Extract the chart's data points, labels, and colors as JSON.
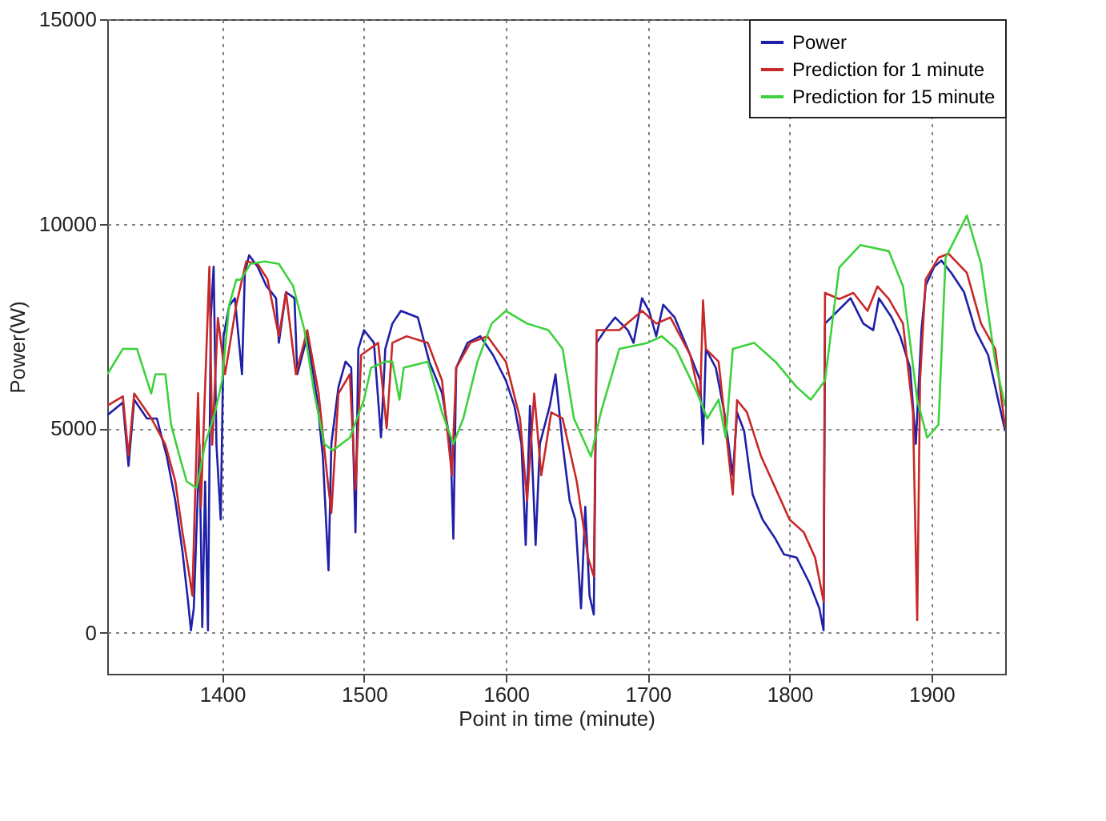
{
  "chart_data": {
    "type": "line",
    "xlabel": "Point in time (minute)",
    "ylabel": "Power(W)",
    "xlim": [
      1319,
      1952
    ],
    "ylim": [
      -1000,
      15000
    ],
    "xticks": [
      1400,
      1500,
      1600,
      1700,
      1800,
      1900
    ],
    "yticks": [
      0,
      5000,
      10000,
      15000
    ],
    "grid": true,
    "legend": "top right",
    "line_style": "solid",
    "marker": "none",
    "series": [
      {
        "name": "Power",
        "color": "#1f1fa8",
        "x": [
          1319,
          1330,
          1334,
          1338,
          1347,
          1354,
          1361,
          1367,
          1372,
          1376,
          1378,
          1380,
          1384,
          1386,
          1388,
          1390,
          1392,
          1394,
          1396,
          1399,
          1401,
          1405,
          1409,
          1414,
          1416,
          1419,
          1425,
          1431,
          1438,
          1440,
          1445,
          1451,
          1453,
          1460,
          1467,
          1471,
          1475,
          1477,
          1482,
          1487,
          1491,
          1494,
          1496,
          1500,
          1507,
          1512,
          1515,
          1520,
          1526,
          1538,
          1546,
          1555,
          1561,
          1563,
          1565,
          1573,
          1582,
          1591,
          1600,
          1606,
          1611,
          1614,
          1617,
          1621,
          1624,
          1631,
          1635,
          1640,
          1645,
          1649,
          1653,
          1656,
          1659,
          1662,
          1664,
          1670,
          1677,
          1686,
          1690,
          1696,
          1701,
          1706,
          1711,
          1719,
          1730,
          1737,
          1739,
          1741,
          1748,
          1754,
          1760,
          1763,
          1768,
          1774,
          1781,
          1790,
          1796,
          1805,
          1814,
          1821,
          1824,
          1825,
          1834,
          1843,
          1852,
          1859,
          1863,
          1872,
          1878,
          1885,
          1889,
          1893,
          1896,
          1902,
          1907,
          1914,
          1923,
          1931,
          1940,
          1952
        ],
        "values": [
          5320,
          5630,
          4080,
          5700,
          5240,
          5240,
          4310,
          3230,
          2000,
          760,
          60,
          600,
          4600,
          140,
          3700,
          60,
          7700,
          8950,
          4600,
          2770,
          7250,
          8000,
          8180,
          6320,
          8800,
          9230,
          8950,
          8490,
          8180,
          7090,
          8330,
          8180,
          6320,
          7250,
          5700,
          4310,
          1530,
          4620,
          6010,
          6630,
          6480,
          2460,
          6940,
          7400,
          7090,
          4780,
          6940,
          7560,
          7870,
          7710,
          6630,
          5860,
          4620,
          2300,
          6480,
          7090,
          7250,
          6790,
          6170,
          5550,
          4620,
          2150,
          5550,
          2150,
          4620,
          5550,
          6320,
          4620,
          3230,
          2770,
          600,
          3080,
          910,
          450,
          7090,
          7400,
          7710,
          7400,
          7090,
          8180,
          7870,
          7250,
          8020,
          7710,
          6790,
          6170,
          4620,
          6940,
          6480,
          5390,
          3850,
          5390,
          4930,
          3380,
          2770,
          2300,
          1920,
          1840,
          1220,
          600,
          60,
          7560,
          7870,
          8180,
          7560,
          7400,
          8180,
          7710,
          7250,
          6480,
          4620,
          7400,
          8490,
          8950,
          9100,
          8800,
          8330,
          7400,
          6790,
          4930
        ]
      },
      {
        "name": "Prediction for 1 minute",
        "color": "#c82828",
        "x": [
          1319,
          1330,
          1334,
          1338,
          1350,
          1360,
          1367,
          1372,
          1377,
          1379,
          1383,
          1385,
          1391,
          1393,
          1397,
          1402,
          1410,
          1417,
          1425,
          1432,
          1440,
          1445,
          1452,
          1460,
          1468,
          1474,
          1477,
          1482,
          1490,
          1494,
          1498,
          1510,
          1516,
          1520,
          1530,
          1545,
          1555,
          1562,
          1565,
          1575,
          1587,
          1600,
          1610,
          1615,
          1620,
          1625,
          1632,
          1640,
          1650,
          1658,
          1662,
          1664,
          1680,
          1696,
          1706,
          1716,
          1730,
          1737,
          1739,
          1741,
          1750,
          1760,
          1763,
          1770,
          1780,
          1790,
          1800,
          1810,
          1818,
          1824,
          1825,
          1835,
          1845,
          1855,
          1862,
          1870,
          1880,
          1887,
          1890,
          1892,
          1896,
          1905,
          1912,
          1925,
          1935,
          1945,
          1952
        ],
        "values": [
          5550,
          5780,
          4330,
          5850,
          5250,
          4600,
          3700,
          2460,
          1380,
          910,
          5860,
          3080,
          8950,
          4600,
          7700,
          6320,
          8020,
          9080,
          9020,
          8640,
          7250,
          8330,
          6320,
          7400,
          5860,
          3850,
          2930,
          5850,
          6320,
          3500,
          6790,
          7090,
          5000,
          7090,
          7250,
          7090,
          6170,
          3850,
          6480,
          7090,
          7250,
          6630,
          5240,
          3230,
          5850,
          3850,
          5390,
          5240,
          3700,
          1840,
          1380,
          7400,
          7400,
          7870,
          7560,
          7710,
          6790,
          5700,
          8130,
          6940,
          6630,
          3380,
          5690,
          5390,
          4310,
          3540,
          2770,
          2460,
          1840,
          770,
          8310,
          8160,
          8310,
          7870,
          8470,
          8160,
          7560,
          5390,
          310,
          6170,
          8640,
          9170,
          9270,
          8800,
          7560,
          6940,
          5000
        ]
      },
      {
        "name": "Prediction for 15 minute",
        "color": "#3cd23c",
        "x": [
          1319,
          1330,
          1340,
          1350,
          1353,
          1360,
          1364,
          1370,
          1375,
          1382,
          1388,
          1395,
          1400,
          1405,
          1410,
          1413,
          1420,
          1430,
          1440,
          1450,
          1458,
          1465,
          1472,
          1478,
          1490,
          1500,
          1505,
          1515,
          1520,
          1525,
          1528,
          1545,
          1555,
          1563,
          1570,
          1580,
          1590,
          1600,
          1615,
          1630,
          1640,
          1648,
          1660,
          1667,
          1680,
          1700,
          1710,
          1720,
          1735,
          1742,
          1750,
          1755,
          1760,
          1775,
          1790,
          1805,
          1815,
          1825,
          1835,
          1850,
          1870,
          1880,
          1890,
          1897,
          1905,
          1910,
          1925,
          1935,
          1945,
          1952
        ],
        "values": [
          6320,
          6940,
          6940,
          5850,
          6320,
          6320,
          5090,
          4310,
          3700,
          3540,
          4620,
          5390,
          6170,
          8020,
          8630,
          8630,
          9020,
          9080,
          9020,
          8480,
          7400,
          5850,
          4620,
          4460,
          4770,
          5700,
          6480,
          6630,
          6630,
          5700,
          6480,
          6630,
          5390,
          4620,
          5240,
          6630,
          7560,
          7870,
          7560,
          7400,
          6940,
          5240,
          4310,
          5390,
          6940,
          7090,
          7250,
          6940,
          5850,
          5240,
          5700,
          4770,
          6940,
          7090,
          6630,
          6010,
          5700,
          6170,
          8930,
          9480,
          9330,
          8470,
          5700,
          4770,
          5090,
          9170,
          10200,
          9020,
          6630,
          5540
        ]
      }
    ]
  }
}
